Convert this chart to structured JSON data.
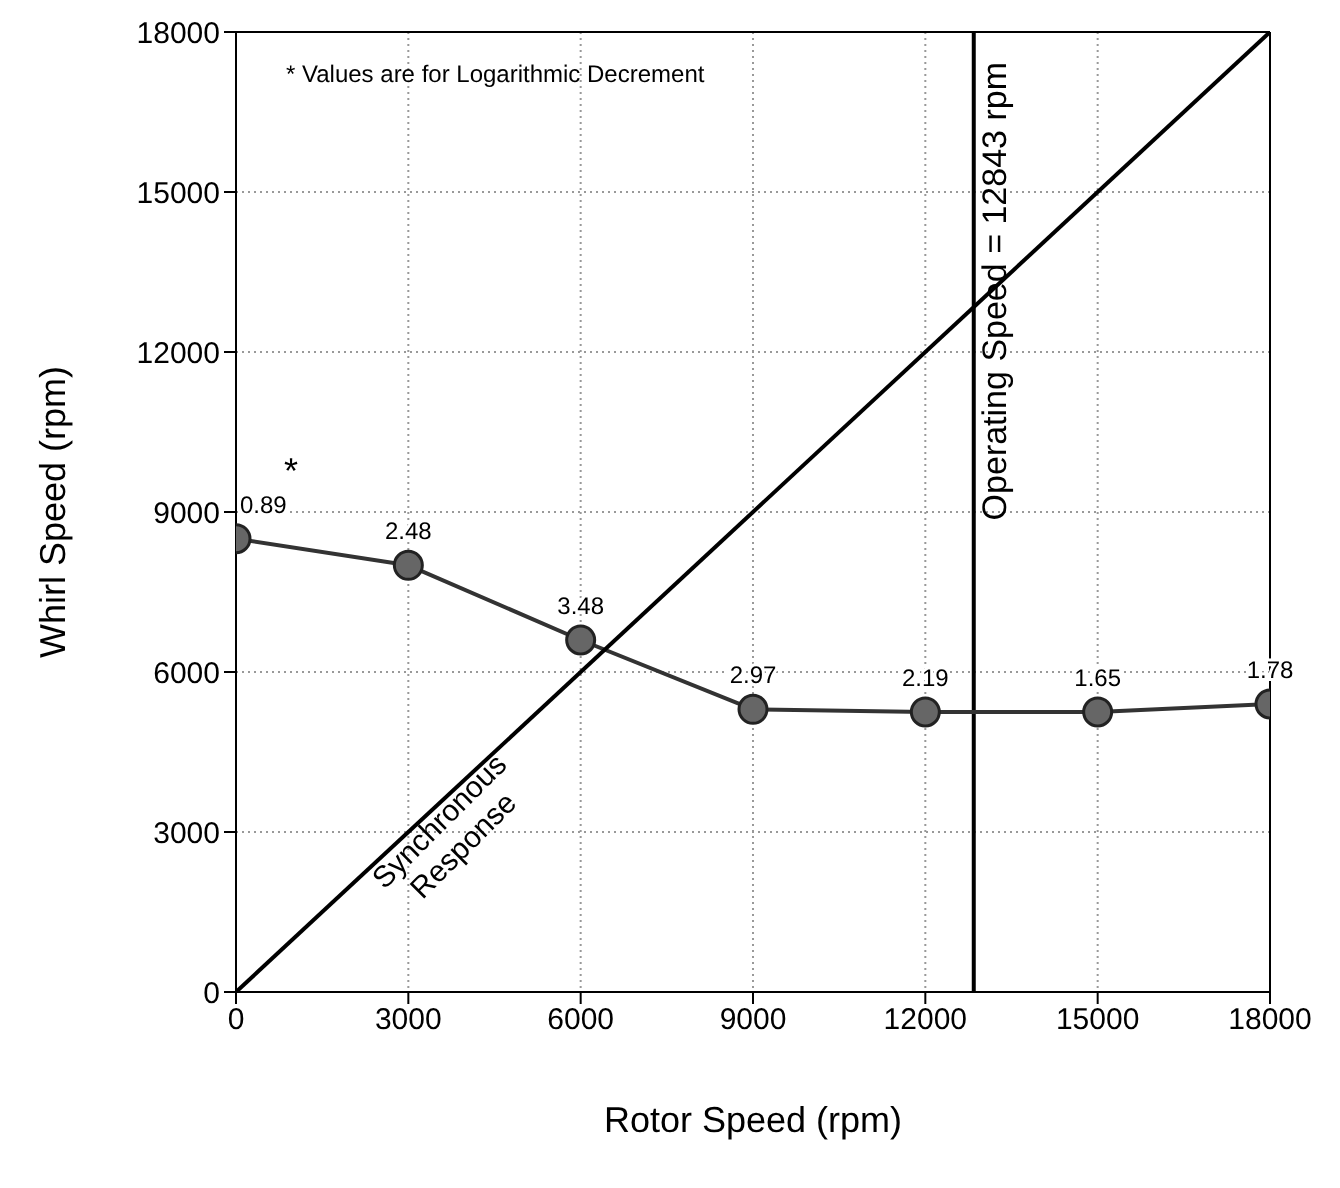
{
  "chart_data": {
    "type": "line",
    "xlabel": "Rotor Speed (rpm)",
    "ylabel": "Whirl Speed (rpm)",
    "xlim": [
      0,
      18000
    ],
    "xticks": [
      0,
      3000,
      6000,
      9000,
      12000,
      15000,
      18000
    ],
    "ylim": [
      0,
      18000
    ],
    "yticks": [
      0,
      3000,
      6000,
      9000,
      12000,
      15000,
      18000
    ],
    "grid": true,
    "legend": false,
    "series": [
      {
        "x": [
          0,
          3000,
          6000,
          9000,
          12000,
          15000,
          18000
        ],
        "values": [
          8500,
          8000,
          6600,
          5300,
          5250,
          5250,
          5400
        ],
        "color": "#333333",
        "marker": "circle"
      },
      {
        "x": [
          0,
          18000
        ],
        "values": [
          0,
          18000
        ],
        "color": "#000000",
        "marker": "none"
      }
    ],
    "ref_lines": [
      {
        "axis": "x",
        "value": 12843,
        "label": "Operating Speed = 12843 rpm",
        "color": "#000000"
      }
    ],
    "annotations": [
      "* Values are for Logarithmic Decrement",
      "Synchronous Response",
      {
        "text": "*",
        "x": 0,
        "y": 8500
      },
      {
        "text": "0.89",
        "x": 0,
        "y": 8500
      },
      {
        "text": "2.48",
        "x": 3000,
        "y": 8000
      },
      {
        "text": "3.48",
        "x": 6000,
        "y": 6600
      },
      {
        "text": "2.97",
        "x": 9000,
        "y": 5300
      },
      {
        "text": "2.19",
        "x": 12000,
        "y": 5250
      },
      {
        "text": "1.65",
        "x": 15000,
        "y": 5250
      },
      {
        "text": "1.78",
        "x": 18000,
        "y": 5400
      }
    ]
  }
}
